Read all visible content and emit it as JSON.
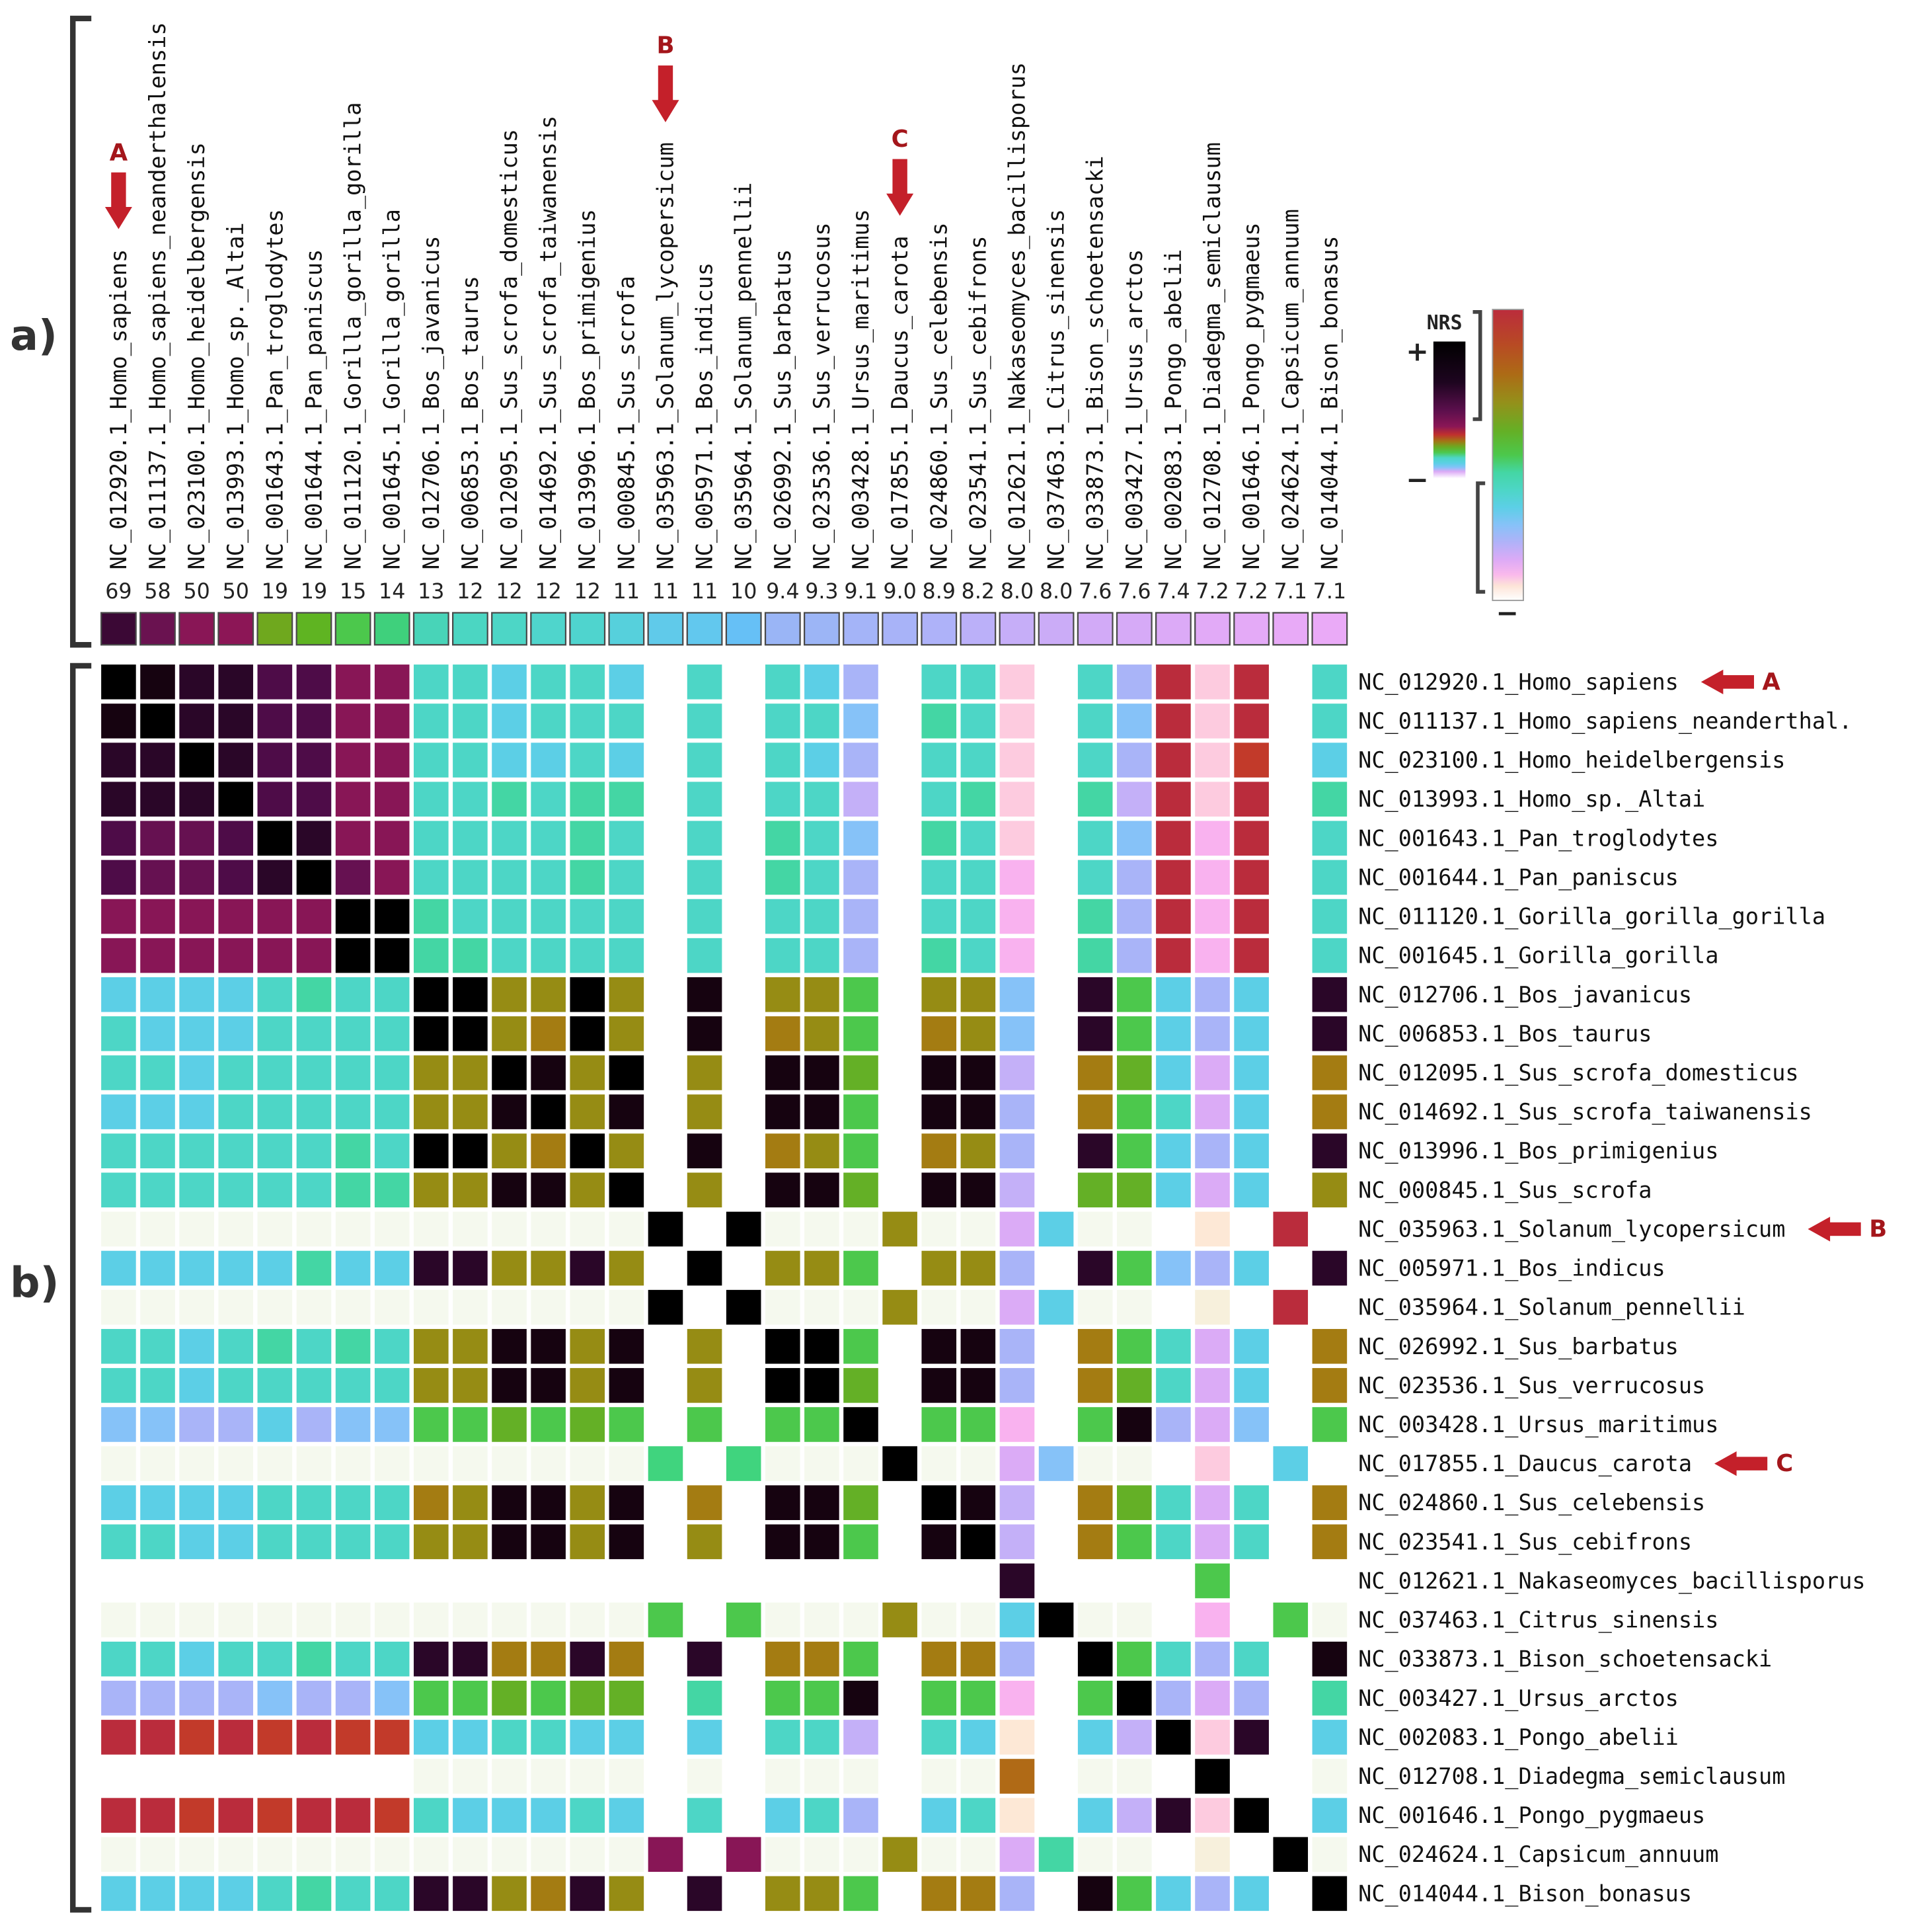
{
  "figure": {
    "panel_a_label": "a)",
    "panel_b_label": "b)",
    "legend": {
      "title": "NRS",
      "high": "+",
      "low": "−",
      "low_expanded": "−"
    }
  },
  "chart_data": {
    "type": "heatmap",
    "title": "",
    "columns": [
      "NC_012920.1_Homo_sapiens",
      "NC_011137.1_Homo_sapiens_neanderthalensis",
      "NC_023100.1_Homo_heidelbergensis",
      "NC_013993.1_Homo_sp._Altai",
      "NC_001643.1_Pan_troglodytes",
      "NC_001644.1_Pan_paniscus",
      "NC_011120.1_Gorilla_gorilla_gorilla",
      "NC_001645.1_Gorilla_gorilla",
      "NC_012706.1_Bos_javanicus",
      "NC_006853.1_Bos_taurus",
      "NC_012095.1_Sus_scrofa_domesticus",
      "NC_014692.1_Sus_scrofa_taiwanensis",
      "NC_013996.1_Bos_primigenius",
      "NC_000845.1_Sus_scrofa",
      "NC_035963.1_Solanum_lycopersicum",
      "NC_005971.1_Bos_indicus",
      "NC_035964.1_Solanum_pennellii",
      "NC_026992.1_Sus_barbatus",
      "NC_023536.1_Sus_verrucosus",
      "NC_003428.1_Ursus_maritimus",
      "NC_017855.1_Daucus_carota",
      "NC_024860.1_Sus_celebensis",
      "NC_023541.1_Sus_cebifrons",
      "NC_012621.1_Nakaseomyces_bacillisporus",
      "NC_037463.1_Citrus_sinensis",
      "NC_033873.1_Bison_schoetensacki",
      "NC_003427.1_Ursus_arctos",
      "NC_002083.1_Pongo_abelii",
      "NC_012708.1_Diadegma_semiclausum",
      "NC_001646.1_Pongo_pygmaeus",
      "NC_024624.1_Capsicum_annuum",
      "NC_014044.1_Bison_bonasus"
    ],
    "column_scores": [
      "69",
      "58",
      "50",
      "50",
      "19",
      "19",
      "15",
      "14",
      "13",
      "12",
      "12",
      "12",
      "12",
      "11",
      "11",
      "11",
      "10",
      "9.4",
      "9.3",
      "9.1",
      "9.0",
      "8.9",
      "8.2",
      "8.0",
      "8.0",
      "7.6",
      "7.6",
      "7.4",
      "7.2",
      "7.2",
      "7.1",
      "7.1"
    ],
    "column_score_colors": [
      "#3b0835",
      "#6a1250",
      "#891656",
      "#8c1656",
      "#6fa81e",
      "#5fb422",
      "#4cc84c",
      "#3fd07c",
      "#48d4b8",
      "#4bd6c2",
      "#4dd6c6",
      "#4fd5cc",
      "#4fd4ce",
      "#56d0dc",
      "#60caea",
      "#62c8ee",
      "#66c0f6",
      "#9ab5f6",
      "#9cb5f6",
      "#a4b4f8",
      "#a8b3f8",
      "#aeb2f9",
      "#bbb0f9",
      "#c6aef8",
      "#cbacf7",
      "#d2aaf7",
      "#d6aaf7",
      "#dcaaf7",
      "#e2aaf7",
      "#e4aaf7",
      "#e8aaf7",
      "#eaaaf7"
    ],
    "rows": [
      "NC_012920.1_Homo_sapiens",
      "NC_011137.1_Homo_sapiens_neanderthal.",
      "NC_023100.1_Homo_heidelbergensis",
      "NC_013993.1_Homo_sp._Altai",
      "NC_001643.1_Pan_troglodytes",
      "NC_001644.1_Pan_paniscus",
      "NC_011120.1_Gorilla_gorilla_gorilla",
      "NC_001645.1_Gorilla_gorilla",
      "NC_012706.1_Bos_javanicus",
      "NC_006853.1_Bos_taurus",
      "NC_012095.1_Sus_scrofa_domesticus",
      "NC_014692.1_Sus_scrofa_taiwanensis",
      "NC_013996.1_Bos_primigenius",
      "NC_000845.1_Sus_scrofa",
      "NC_035963.1_Solanum_lycopersicum",
      "NC_005971.1_Bos_indicus",
      "NC_035964.1_Solanum_pennellii",
      "NC_026992.1_Sus_barbatus",
      "NC_023536.1_Sus_verrucosus",
      "NC_003428.1_Ursus_maritimus",
      "NC_017855.1_Daucus_carota",
      "NC_024860.1_Sus_celebensis",
      "NC_023541.1_Sus_cebifrons",
      "NC_012621.1_Nakaseomyces_bacillisporus",
      "NC_037463.1_Citrus_sinensis",
      "NC_033873.1_Bison_schoetensacki",
      "NC_003427.1_Ursus_arctos",
      "NC_002083.1_Pongo_abelii",
      "NC_012708.1_Diadegma_semiclausum",
      "NC_001646.1_Pongo_pygmaeus",
      "NC_024624.1_Capsicum_annuum",
      "NC_014044.1_Bison_bonasus"
    ],
    "palette": {
      "K": "#000000",
      "A": "#160310",
      "B": "#2a0628",
      "P": "#4e0c48",
      "Q": "#661151",
      "M": "#881656",
      "T": "#4dd6c6",
      "G": "#44d6a4",
      "C": "#5ccfe6",
      "L": "#86c2f8",
      "V": "#a9b4f8",
      "U": "#c4b0f8",
      "I": "#dbabf6",
      "F": "#f9b2ef",
      "p": "#fdcbdf",
      "c": "#fde8d6",
      "y": "#f7f0dc",
      "R": "#ba2c3c",
      "r": "#c23a2a",
      "O": "#968c14",
      "o": "#a47c12",
      "n": "#b06a16",
      "g": "#4cc84c",
      "h": "#64b026",
      "e": "#40d47e",
      "w": "#f5f9ee"
    },
    "cells": [
      "KABBPPMMTTCTTC.T.TCV.TTp.TVRpR.T",
      "AKBBPPMMTTCTTT.T.TTL.GTp.TLRpR.T",
      "BBKBPPMMTTCCTC.T.TCV.TTp.TVRpr.C",
      "BBBKPPMMTTGTGG.T.TTU.TGp.GURpR.G",
      "PQQPKBMMTTTTGT.T.GTL.GTp.TLRFR.T",
      "PQQPBKQMTTTTGT.T.GTV.TTF.TVRFR.T",
      "MMMMMMKKGTTTTT.T.TTV.TTF.GVRFR.T",
      "MMMMMMKKGGTTTT.T.TTV.GTF.GVRFR.T",
      "CCCCTGTTKKOOKO.A.OOg.OOL.BgCVC.B",
      "TCCCTTTTKKOoKO.A.oOg.oOL.BgCVC.B",
      "TTCTTTTTOOKAOK.O.AAh.AAU.ohCIC.o",
      "CCCTTTTTOOAKOA.O.AAg.AAV.ogTIC.o",
      "TTTTTTGTKKOoKO.A.oOg.oOV.BgCVC.B",
      "TTTTTTGGOOAAOK.O.AAh.AAU.hhCIC.O",
      "wwwwwwwwwwwwwwK.KwwwOwwICww.c.R.",
      "CCCCCGCCBBOOBO.K.OOg.OOV.BgLVC.B",
      "wwwwwwwwwwwwwwK.KwwwOwwICww.y.R.",
      "TTCTGTGTOOAAOA.O.KKg.AAV.ogTIC.o",
      "TTCTTTTTOOAAOA.O.KKh.AAV.ohTIC.o",
      "LLVVCVLLgghghg.g.ggK.ggF.gAVIL.g",
      "wwwwwwwwwwwwwwe.ewwwKwwILww.p.C.",
      "CCCCTTTToOAAOA.o.AAh.KAU.ohTIT.o",
      "TTCCTTTTOOAAOA.O.AAg.AKU.ogTIT.o",
      ".......................B....g...",
      "wwwwwwwwwwwwwwg.gwwwOwwCKww.F.gw",
      "TTCTTGTTBBooBo.B.oog.ooV.KgTVT.A",
      "VVVVLVVLgghghh.G.ggA.ggF.gKVIV.G",
      "RRrRrRrrCCTTCC.C.TTU.TCc.CUKpB.C",
      "........wwwwww.w.www.wwn.ww.K..w",
      "RRrRrRRrTCCCTC.T.CTV.CTc.CUBpK.C",
      "wwwwwwwwwwwwwwM.MwwwOwwIGww.y.Kw",
      "CCCCTGTTBBOoBO.B.OOg.ooV.AgCVC.K"
    ],
    "highlighted_columns": [
      {
        "label": "A",
        "index": 0
      },
      {
        "label": "B",
        "index": 14
      },
      {
        "label": "C",
        "index": 20
      }
    ],
    "highlighted_rows": [
      {
        "label": "A",
        "index": 0
      },
      {
        "label": "B",
        "index": 14
      },
      {
        "label": "C",
        "index": 20
      }
    ],
    "arrow_color": "#c4202a"
  }
}
